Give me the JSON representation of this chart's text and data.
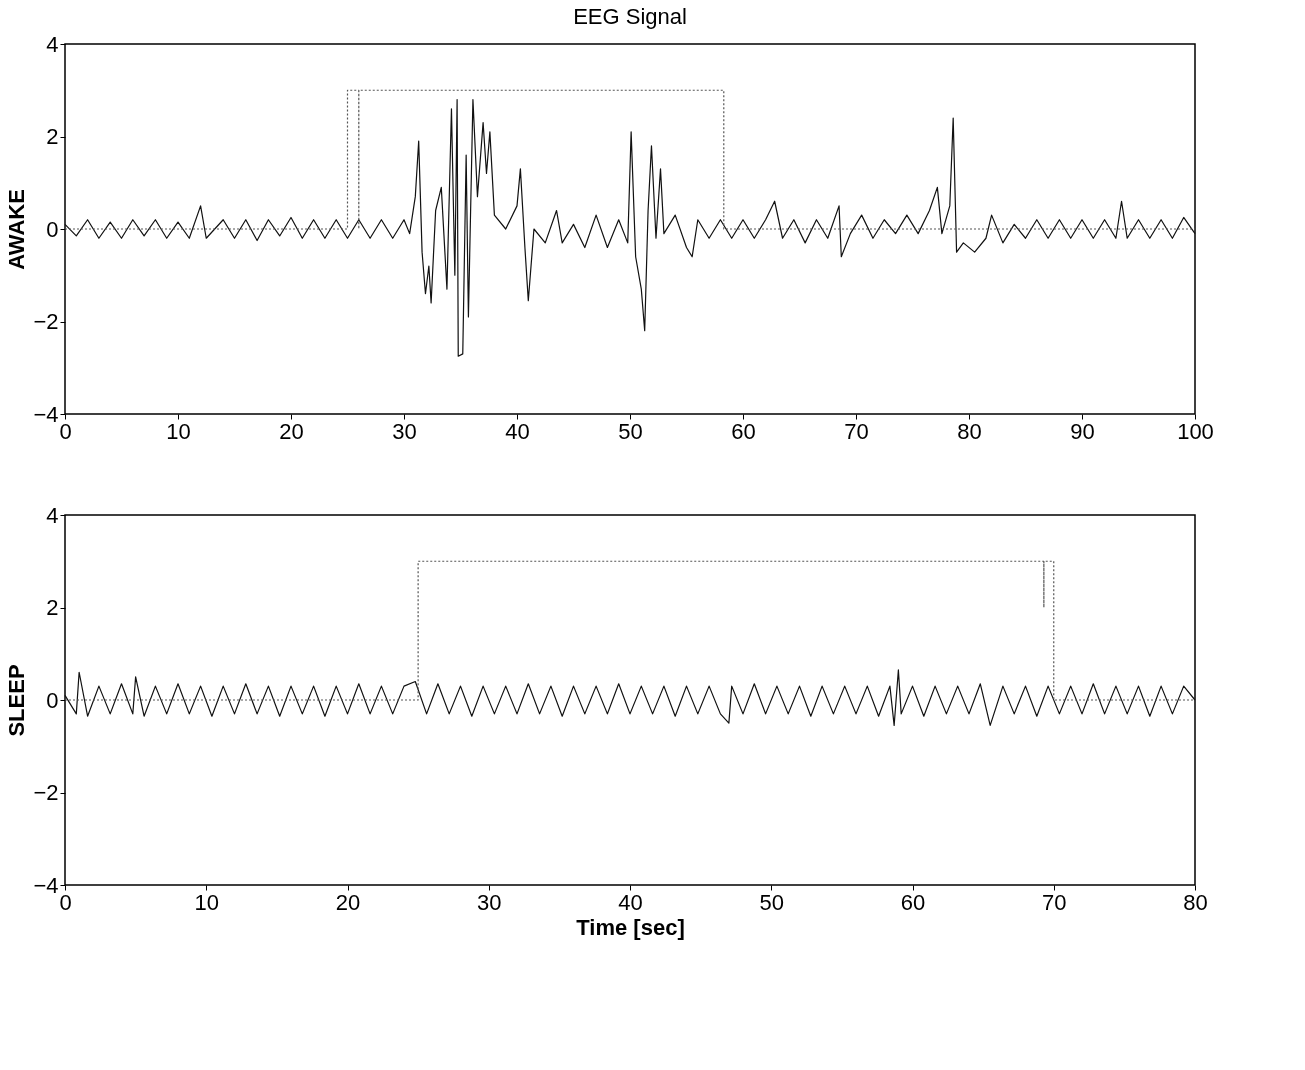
{
  "chart_data": [
    {
      "type": "line",
      "title": "EEG Signal",
      "ylabel": "AWAKE",
      "xlim": [
        0,
        100
      ],
      "xticks": [
        0,
        10,
        20,
        30,
        40,
        50,
        60,
        70,
        80,
        90,
        100
      ],
      "ylim": [
        -4,
        4
      ],
      "yticks": [
        -4,
        -2,
        0,
        2,
        4
      ],
      "grid": false,
      "tick_labels": true,
      "series": [
        {
          "color": "#111111",
          "line_style": "solid",
          "x": [
            0,
            1,
            2,
            3,
            4,
            5,
            6,
            7,
            8,
            9,
            10,
            11,
            12,
            12.5,
            14,
            15,
            16,
            17,
            18,
            19,
            20,
            21,
            22,
            23,
            24,
            25,
            26,
            27,
            28,
            29,
            30,
            30.5,
            31,
            31.3,
            31.6,
            31.9,
            32.2,
            32.4,
            32.8,
            33.3,
            33.8,
            34.2,
            34.5,
            34.7,
            34.8,
            35.2,
            35.5,
            35.7,
            36.1,
            36.5,
            37,
            37.3,
            37.6,
            38,
            39,
            40,
            40.3,
            40.7,
            41,
            41.5,
            42.5,
            43.5,
            44,
            45,
            46,
            47,
            48,
            49,
            49.8,
            50.1,
            50.5,
            51,
            51.3,
            51.6,
            51.9,
            52.3,
            52.7,
            53,
            54,
            55,
            55.5,
            56,
            57,
            58,
            59,
            60,
            61,
            62,
            62.8,
            63.5,
            64.5,
            65.5,
            66.5,
            67.5,
            68.5,
            68.7,
            69.5,
            70.5,
            71.5,
            72.5,
            73.5,
            74.5,
            75.5,
            76.5,
            77.2,
            77.6,
            78.3,
            78.6,
            78.9,
            79.5,
            80.5,
            81.5,
            82,
            83,
            84,
            85,
            86,
            87,
            88,
            89,
            90,
            91,
            92,
            93,
            93.5,
            94,
            95,
            96,
            97,
            98,
            99,
            100
          ],
          "values": [
            0.1,
            -0.15,
            0.2,
            -0.2,
            0.15,
            -0.2,
            0.2,
            -0.15,
            0.2,
            -0.2,
            0.15,
            -0.2,
            0.5,
            -0.2,
            0.2,
            -0.2,
            0.2,
            -0.25,
            0.2,
            -0.15,
            0.25,
            -0.2,
            0.2,
            -0.2,
            0.2,
            -0.2,
            0.2,
            -0.2,
            0.2,
            -0.2,
            0.2,
            -0.1,
            0.7,
            1.9,
            -0.5,
            -1.4,
            -0.8,
            -1.6,
            0.4,
            0.9,
            -1.3,
            2.6,
            -1.0,
            2.8,
            -2.75,
            -2.7,
            1.6,
            -1.9,
            2.8,
            0.7,
            2.3,
            1.2,
            2.1,
            0.3,
            0.0,
            0.5,
            1.3,
            -0.4,
            -1.55,
            0.0,
            -0.3,
            0.4,
            -0.3,
            0.1,
            -0.4,
            0.3,
            -0.4,
            0.2,
            -0.3,
            2.1,
            -0.6,
            -1.3,
            -2.2,
            0.4,
            1.8,
            -0.2,
            1.3,
            -0.1,
            0.3,
            -0.4,
            -0.6,
            0.2,
            -0.2,
            0.2,
            -0.2,
            0.2,
            -0.2,
            0.2,
            0.6,
            -0.2,
            0.2,
            -0.3,
            0.2,
            -0.2,
            0.5,
            -0.6,
            -0.1,
            0.3,
            -0.2,
            0.2,
            -0.1,
            0.3,
            -0.1,
            0.4,
            0.9,
            -0.1,
            0.5,
            2.4,
            -0.5,
            -0.3,
            -0.5,
            -0.2,
            0.3,
            -0.3,
            0.1,
            -0.2,
            0.2,
            -0.2,
            0.2,
            -0.2,
            0.2,
            -0.2,
            0.2,
            -0.2,
            0.6,
            -0.2,
            0.2,
            -0.2,
            0.2,
            -0.2,
            0.25,
            -0.1
          ]
        },
        {
          "color": "#555555",
          "line_style": "dotted",
          "x": [
            0,
            25,
            25,
            26,
            26,
            26,
            58.3,
            58.3,
            100
          ],
          "values": [
            0,
            0,
            3,
            3,
            0,
            3,
            3,
            0,
            0
          ]
        }
      ]
    },
    {
      "type": "line",
      "xlabel": "Time [sec]",
      "ylabel": "SLEEP",
      "xlim": [
        0,
        80
      ],
      "xticks": [
        0,
        10,
        20,
        30,
        40,
        50,
        60,
        70,
        80
      ],
      "ylim": [
        -4,
        4
      ],
      "yticks": [
        -4,
        -2,
        0,
        2,
        4
      ],
      "grid": false,
      "tick_labels": true,
      "series": [
        {
          "color": "#111111",
          "line_style": "solid",
          "x": [
            0,
            0.8,
            1.0,
            1.6,
            2.4,
            3.2,
            4.0,
            4.8,
            5.0,
            5.6,
            6.4,
            7.2,
            8.0,
            8.8,
            9.6,
            10.4,
            11.2,
            12.0,
            12.8,
            13.6,
            14.4,
            15.2,
            16.0,
            16.8,
            17.6,
            18.4,
            19.2,
            20.0,
            20.8,
            21.6,
            22.4,
            23.2,
            24.0,
            24.8,
            25.6,
            26.4,
            27.2,
            28.0,
            28.8,
            29.6,
            30.4,
            31.2,
            32.0,
            32.8,
            33.6,
            34.4,
            35.2,
            36.0,
            36.8,
            37.6,
            38.4,
            39.2,
            40.0,
            40.8,
            41.6,
            42.4,
            43.2,
            44.0,
            44.8,
            45.6,
            46.4,
            47.0,
            47.2,
            48.0,
            48.8,
            49.6,
            50.4,
            51.2,
            52.0,
            52.8,
            53.6,
            54.4,
            55.2,
            56.0,
            56.8,
            57.6,
            58.4,
            58.7,
            59.0,
            59.2,
            60.0,
            60.8,
            61.6,
            62.4,
            63.2,
            64.0,
            64.8,
            65.5,
            66.4,
            67.2,
            68.0,
            68.8,
            69.6,
            70.4,
            71.2,
            72.0,
            72.8,
            73.6,
            74.4,
            75.2,
            76.0,
            76.8,
            77.6,
            78.4,
            79.2,
            80.0
          ],
          "values": [
            0.1,
            -0.3,
            0.6,
            -0.35,
            0.3,
            -0.3,
            0.35,
            -0.3,
            0.5,
            -0.35,
            0.3,
            -0.3,
            0.35,
            -0.3,
            0.3,
            -0.35,
            0.3,
            -0.3,
            0.35,
            -0.3,
            0.3,
            -0.35,
            0.3,
            -0.3,
            0.3,
            -0.35,
            0.3,
            -0.3,
            0.35,
            -0.3,
            0.3,
            -0.3,
            0.3,
            0.4,
            -0.3,
            0.35,
            -0.3,
            0.3,
            -0.35,
            0.3,
            -0.3,
            0.3,
            -0.3,
            0.35,
            -0.3,
            0.3,
            -0.35,
            0.3,
            -0.3,
            0.3,
            -0.3,
            0.35,
            -0.3,
            0.3,
            -0.3,
            0.3,
            -0.35,
            0.3,
            -0.3,
            0.3,
            -0.3,
            -0.5,
            0.3,
            -0.3,
            0.35,
            -0.3,
            0.3,
            -0.3,
            0.3,
            -0.35,
            0.3,
            -0.3,
            0.3,
            -0.3,
            0.3,
            -0.35,
            0.3,
            -0.55,
            0.65,
            -0.3,
            0.3,
            -0.35,
            0.3,
            -0.3,
            0.3,
            -0.3,
            0.35,
            -0.55,
            0.3,
            -0.3,
            0.3,
            -0.35,
            0.3,
            -0.3,
            0.3,
            -0.3,
            0.35,
            -0.3,
            0.3,
            -0.3,
            0.3,
            -0.35,
            0.3,
            -0.3,
            0.3,
            0.0
          ]
        },
        {
          "color": "#555555",
          "line_style": "dotted",
          "x": [
            0,
            25,
            25,
            69.3,
            69.3,
            69.3,
            70,
            70,
            80
          ],
          "values": [
            0,
            0,
            3,
            3,
            2,
            3,
            3,
            0,
            0
          ]
        }
      ]
    }
  ]
}
